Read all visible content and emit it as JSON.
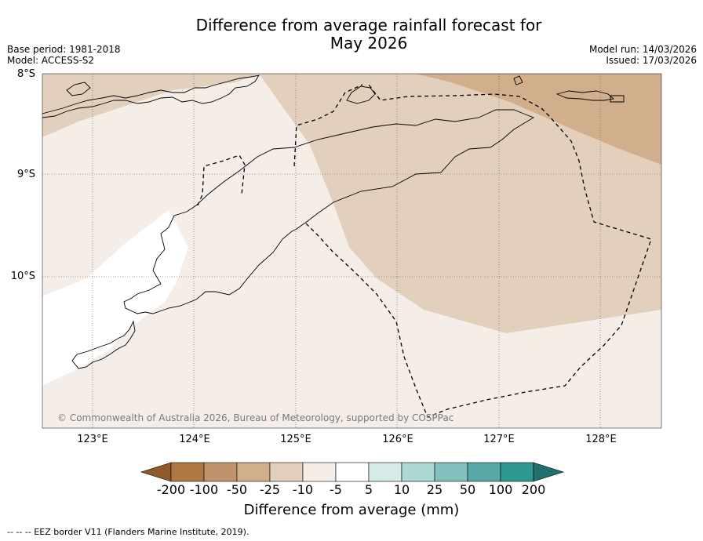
{
  "chart_data": {
    "type": "heatmap",
    "title_line1": "Difference from average rainfall forecast for",
    "title_line2": "May 2026",
    "base_period": "Base period: 1981-2018",
    "model": "Model: ACCESS-S2",
    "model_run": "Model run: 14/03/2026",
    "issued": "Issued: 17/03/2026",
    "lat_ticks": [
      "8°S",
      "9°S",
      "10°S"
    ],
    "lon_ticks": [
      "123°E",
      "124°E",
      "125°E",
      "126°E",
      "127°E",
      "128°E"
    ],
    "lon_range": [
      122.5,
      128.6
    ],
    "lat_range": [
      -11.5,
      -8.0
    ],
    "colorbar": {
      "label": "Difference from average (mm)",
      "ticks": [
        "-200",
        "-100",
        "-50",
        "-25",
        "-10",
        "-5",
        "5",
        "10",
        "25",
        "50",
        "100",
        "200"
      ],
      "colors": [
        "#8c5a2b",
        "#ad7a46",
        "#bf936b",
        "#d1ae8c",
        "#e2cfbc",
        "#f4ede8",
        "#ffffff",
        "#d6ebe8",
        "#acd8d4",
        "#81c0bc",
        "#58a8a5",
        "#2e9893",
        "#21706d"
      ]
    },
    "copyright": "© Commonwealth of Australia 2026, Bureau of Meteorology, supported by COSPPac",
    "footnote": "--  --  -- EEZ border V11 (Flanders Marine Institute, 2019)."
  }
}
